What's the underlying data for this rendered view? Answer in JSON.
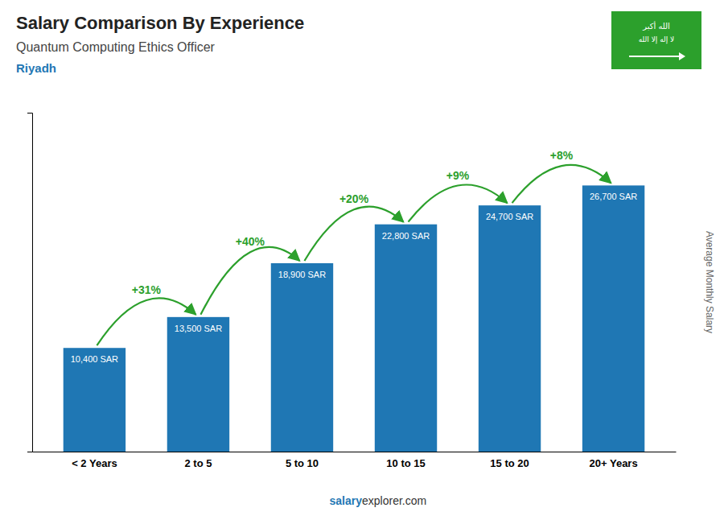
{
  "chart_data": {
    "type": "bar",
    "title": "Salary Comparison By Experience",
    "subtitle": "Quantum Computing Ethics Officer",
    "city": "Riyadh",
    "ylabel": "Average Monthly Salary",
    "categories": [
      "< 2 Years",
      "2 to 5",
      "5 to 10",
      "10 to 15",
      "15 to 20",
      "20+ Years"
    ],
    "values": [
      10400,
      13500,
      18900,
      22800,
      24700,
      26700
    ],
    "value_labels": [
      "10,400 SAR",
      "13,500 SAR",
      "18,900 SAR",
      "22,800 SAR",
      "24,700 SAR",
      "26,700 SAR"
    ],
    "data_labels": true,
    "annotations": [
      "+31%",
      "+40%",
      "+20%",
      "+9%",
      "+8%"
    ],
    "flag_text": [
      "الله أكبر",
      "لا إله إلا الله"
    ],
    "footer": [
      "salary",
      "explorer.com"
    ],
    "ylim": [
      0,
      34000
    ],
    "tick_labels": "x"
  }
}
